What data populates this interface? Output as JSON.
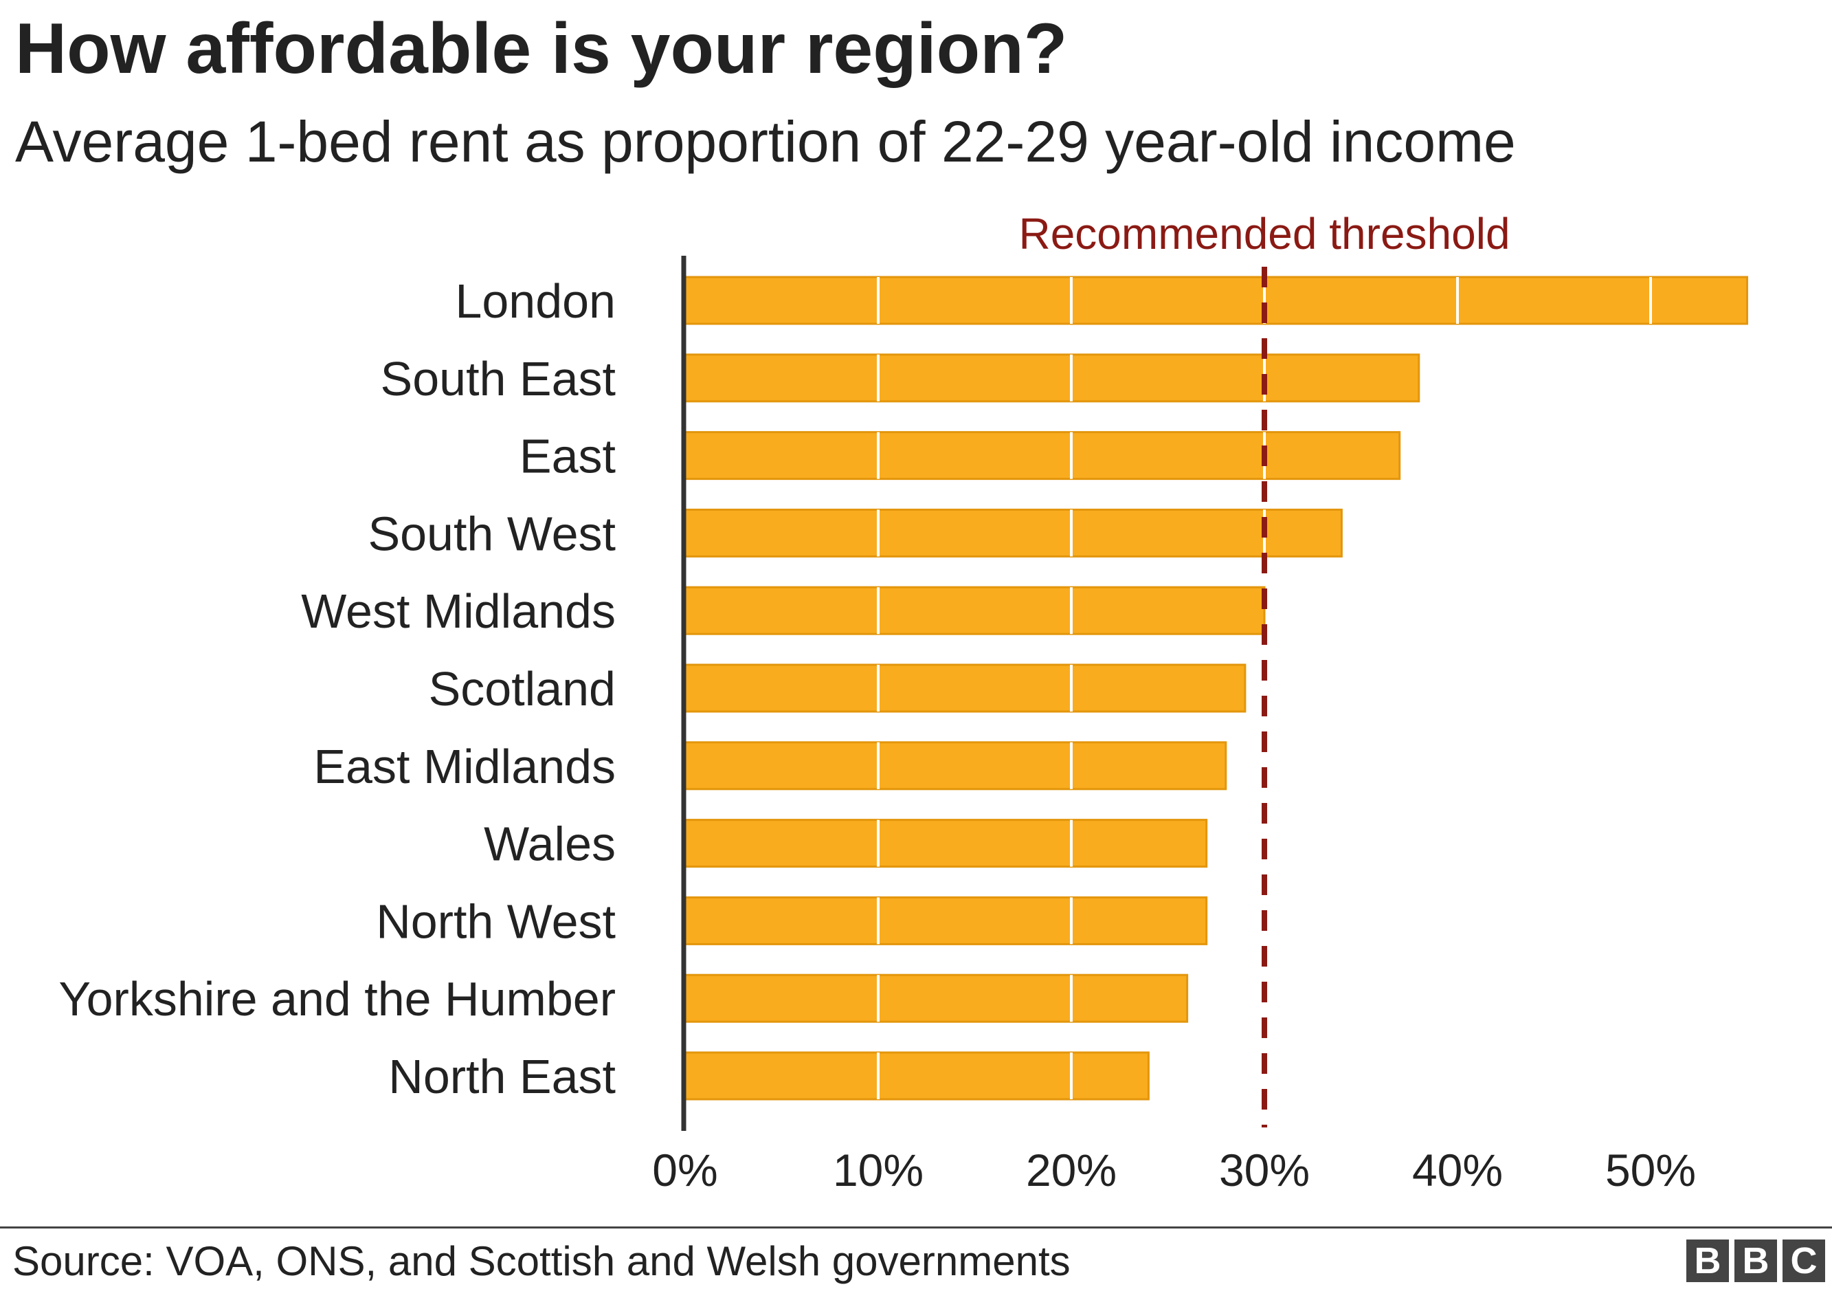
{
  "title": "How affordable is your region?",
  "subtitle": "Average 1-bed rent as proportion of 22-29 year-old income",
  "source": "Source: VOA, ONS, and Scottish and Welsh governments",
  "logo": [
    "B",
    "B",
    "C"
  ],
  "colors": {
    "bar_fill": "#f9ac1e",
    "bar_stroke": "#e3960c",
    "threshold": "#8b1a14",
    "axis": "#333333",
    "gridline": "#ffffff"
  },
  "chart_data": {
    "type": "bar",
    "orientation": "horizontal",
    "categories": [
      "London",
      "South East",
      "East",
      "South West",
      "West Midlands",
      "Scotland",
      "East Midlands",
      "Wales",
      "North West",
      "Yorkshire and the Humber",
      "North East"
    ],
    "values": [
      55,
      38,
      37,
      34,
      30,
      29,
      28,
      27,
      27,
      26,
      24
    ],
    "unit": "%",
    "xlim": [
      0,
      55
    ],
    "xticks": [
      0,
      10,
      20,
      30,
      40,
      50
    ],
    "xtick_labels": [
      "0%",
      "10%",
      "20%",
      "30%",
      "40%",
      "50%"
    ],
    "grid": "white gridlines on bars at 10% intervals",
    "reference_line": {
      "value": 30,
      "label": "Recommended threshold",
      "style": "dashed"
    }
  }
}
